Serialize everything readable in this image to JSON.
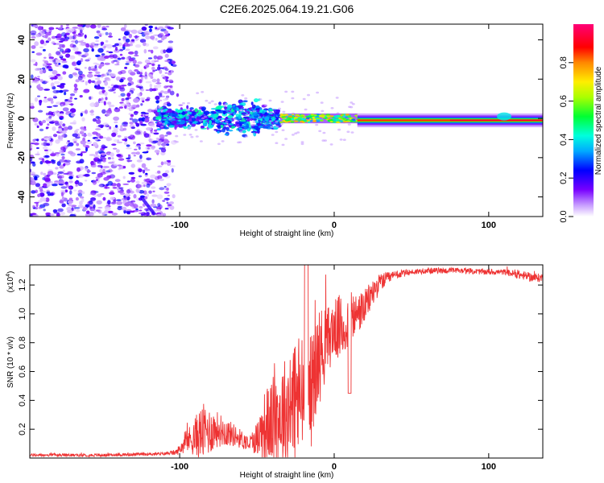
{
  "chart_data": [
    {
      "type": "heatmap",
      "title": "C2E6.2025.064.19.21.G06",
      "xlabel": "Height of straight line (km)",
      "ylabel": "Frequency (Hz)",
      "xlim": [
        -197,
        135
      ],
      "ylim": [
        -50,
        48
      ],
      "xticks": [
        -100,
        0,
        100
      ],
      "xtick_labels": [
        "-100",
        "0",
        "100"
      ],
      "yticks": [
        -40,
        -20,
        0,
        20,
        40
      ],
      "ytick_labels": [
        "-40",
        "-20",
        "0",
        "20",
        "40"
      ],
      "colorbar": {
        "label": "Normalized spectral amplitude",
        "range": [
          0.0,
          1.0
        ],
        "ticks": [
          0.0,
          0.2,
          0.4,
          0.6,
          0.8
        ],
        "tick_labels": [
          "0.0",
          "0.2",
          "0.4",
          "0.6",
          "0.8"
        ]
      },
      "regions": [
        {
          "name": "noise",
          "x_range": [
            -197,
            -105
          ],
          "freq_range": [
            -50,
            48
          ],
          "level": 0.1
        },
        {
          "name": "lobe",
          "x_range": [
            -115,
            -35
          ],
          "center_hz": 0,
          "half_width_hz": 5,
          "level": 0.3
        },
        {
          "name": "narrowing",
          "x_range": [
            -35,
            20
          ],
          "center_hz": 0,
          "half_width_hz": 2,
          "level": 0.5
        },
        {
          "name": "line",
          "x_range": [
            20,
            135
          ],
          "center_hz": -1,
          "half_width_hz": 1,
          "level": 0.95
        }
      ]
    },
    {
      "type": "line",
      "xlabel": "Height of straight line (km)",
      "ylabel": "SNR (10 * v/v)",
      "scale_label": "(x10",
      "scale_exponent": "4",
      "scale_suffix": ")",
      "xlim": [
        -197,
        135
      ],
      "ylim": [
        0.0,
        1.34
      ],
      "xticks": [
        -100,
        0,
        100
      ],
      "xtick_labels": [
        "-100",
        "0",
        "100"
      ],
      "yticks": [
        0.2,
        0.4,
        0.6,
        0.8,
        1.0,
        1.2
      ],
      "ytick_labels": [
        "0.2",
        "0.4",
        "0.6",
        "0.8",
        "1.0",
        "1.2"
      ],
      "color": "#ee3333",
      "series": [
        {
          "name": "SNR",
          "x": [
            -197,
            -150,
            -110,
            -102,
            -95,
            -85,
            -75,
            -65,
            -55,
            -50,
            -45,
            -40,
            -35,
            -30,
            -25,
            -20,
            -15,
            -10,
            -5,
            0,
            5,
            10,
            15,
            20,
            25,
            30,
            40,
            50,
            60,
            70,
            80,
            100,
            110,
            120,
            130,
            135
          ],
          "base": [
            0.02,
            0.02,
            0.03,
            0.04,
            0.12,
            0.18,
            0.2,
            0.16,
            0.1,
            0.14,
            0.22,
            0.26,
            0.3,
            0.34,
            0.4,
            0.42,
            0.46,
            0.7,
            0.8,
            0.9,
            0.9,
            0.95,
            1.0,
            1.05,
            1.15,
            1.22,
            1.27,
            1.29,
            1.3,
            1.3,
            1.3,
            1.29,
            1.29,
            1.27,
            1.25,
            1.25
          ],
          "amp": [
            0.01,
            0.01,
            0.01,
            0.02,
            0.08,
            0.2,
            0.12,
            0.08,
            0.05,
            0.12,
            0.25,
            0.3,
            0.35,
            0.4,
            0.5,
            0.45,
            0.4,
            0.35,
            0.25,
            0.2,
            0.25,
            0.2,
            0.15,
            0.12,
            0.1,
            0.06,
            0.03,
            0.02,
            0.02,
            0.02,
            0.02,
            0.02,
            0.02,
            0.03,
            0.03,
            0.03
          ]
        }
      ]
    }
  ]
}
